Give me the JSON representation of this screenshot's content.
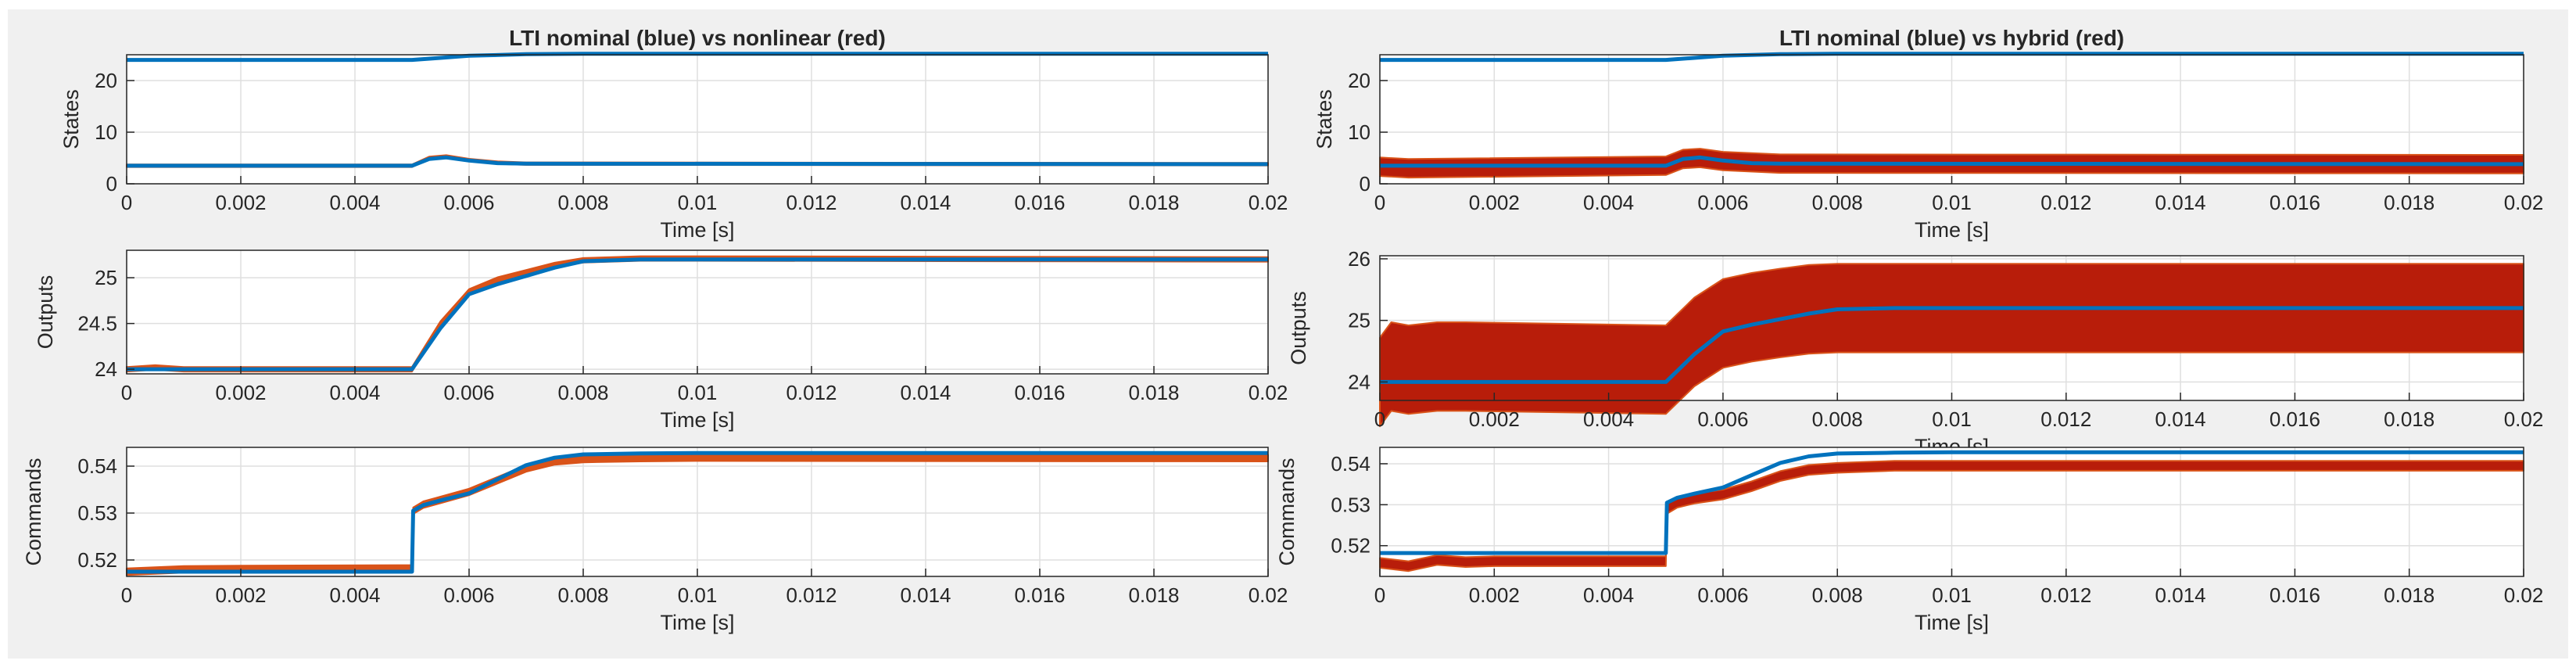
{
  "figure": {
    "background": "#f0f0f0",
    "axes_background": "#ffffff",
    "grid_color": "#dfdfdf",
    "blue": "#0072bd",
    "red": "#d95319",
    "dark_red": "#b81d0a"
  },
  "chart_data": [
    {
      "id": "left-states",
      "type": "line",
      "title": "LTI nominal (blue) vs nonlinear (red)",
      "ylabel": "States",
      "xlabel": "Time [s]",
      "xlim": [
        0,
        0.02
      ],
      "ylim": [
        0,
        25
      ],
      "xticks": [
        "0",
        "0.002",
        "0.004",
        "0.006",
        "0.008",
        "0.01",
        "0.012",
        "0.014",
        "0.016",
        "0.018",
        "0.02"
      ],
      "yticks": [
        "0",
        "10",
        "20"
      ],
      "ytick_values": [
        0,
        10,
        20
      ],
      "grid": true,
      "series": [
        {
          "color": "blue",
          "x": [
            0,
            0.005,
            0.0055,
            0.006,
            0.007,
            0.008,
            0.02
          ],
          "y": [
            24,
            24,
            24.4,
            24.8,
            25.1,
            25.2,
            25.2
          ]
        },
        {
          "color": "red",
          "x": [
            0,
            0.005,
            0.0053,
            0.0056,
            0.006,
            0.0065,
            0.007,
            0.02
          ],
          "y": [
            3.5,
            3.5,
            5.0,
            5.3,
            4.6,
            4.1,
            3.9,
            3.8
          ],
          "band": 0.25
        },
        {
          "color": "blue",
          "x": [
            0,
            0.005,
            0.0053,
            0.0056,
            0.006,
            0.0065,
            0.007,
            0.02
          ],
          "y": [
            3.5,
            3.5,
            4.8,
            5.1,
            4.5,
            4.0,
            3.9,
            3.8
          ]
        }
      ]
    },
    {
      "id": "right-states",
      "type": "line",
      "title": "LTI nominal (blue) vs hybrid (red)",
      "ylabel": "States",
      "xlabel": "Time [s]",
      "xlim": [
        0,
        0.02
      ],
      "ylim": [
        0,
        25
      ],
      "xticks": [
        "0",
        "0.002",
        "0.004",
        "0.006",
        "0.008",
        "0.01",
        "0.012",
        "0.014",
        "0.016",
        "0.018",
        "0.02"
      ],
      "yticks": [
        "0",
        "10",
        "20"
      ],
      "ytick_values": [
        0,
        10,
        20
      ],
      "grid": true,
      "series": [
        {
          "color": "blue",
          "x": [
            0,
            0.005,
            0.0055,
            0.006,
            0.007,
            0.008,
            0.02
          ],
          "y": [
            24,
            24,
            24.4,
            24.8,
            25.1,
            25.2,
            25.2
          ]
        },
        {
          "color": "dark_red",
          "x": [
            0,
            0.0005,
            0.005,
            0.0053,
            0.0056,
            0.006,
            0.007,
            0.02
          ],
          "y": [
            3.3,
            3.0,
            3.5,
            4.8,
            5.0,
            4.4,
            3.9,
            3.8
          ],
          "band": 1.8
        },
        {
          "color": "blue",
          "x": [
            0,
            0.005,
            0.0053,
            0.0056,
            0.006,
            0.0065,
            0.007,
            0.02
          ],
          "y": [
            3.5,
            3.5,
            4.8,
            5.1,
            4.5,
            4.0,
            3.9,
            3.8
          ]
        }
      ]
    },
    {
      "id": "left-outputs",
      "type": "line",
      "title": "",
      "ylabel": "Outputs",
      "xlabel": "Time [s]",
      "xlim": [
        0,
        0.02
      ],
      "ylim": [
        23.95,
        25.3
      ],
      "xticks": [
        "0",
        "0.002",
        "0.004",
        "0.006",
        "0.008",
        "0.01",
        "0.012",
        "0.014",
        "0.016",
        "0.018",
        "0.02"
      ],
      "yticks": [
        "24",
        "24.5",
        "25"
      ],
      "ytick_values": [
        24,
        24.5,
        25
      ],
      "grid": true,
      "series": [
        {
          "color": "red",
          "x": [
            0,
            0.0005,
            0.001,
            0.0015,
            0.005,
            0.0055,
            0.006,
            0.0065,
            0.007,
            0.0075,
            0.008,
            0.009,
            0.01,
            0.02
          ],
          "y": [
            24.0,
            24.02,
            24.0,
            24.0,
            24.0,
            24.5,
            24.85,
            24.98,
            25.06,
            25.14,
            25.19,
            25.21,
            25.21,
            25.2
          ],
          "band": 0.025
        },
        {
          "color": "blue",
          "x": [
            0,
            0.005,
            0.0055,
            0.006,
            0.0065,
            0.007,
            0.0075,
            0.008,
            0.009,
            0.01,
            0.02
          ],
          "y": [
            24.0,
            24.0,
            24.45,
            24.82,
            24.93,
            25.02,
            25.11,
            25.18,
            25.2,
            25.2,
            25.2
          ]
        }
      ]
    },
    {
      "id": "right-outputs",
      "type": "line",
      "title": "",
      "ylabel": "Outputs",
      "xlabel": "Time [s]",
      "xlim": [
        0,
        0.02
      ],
      "ylim": [
        23.7,
        26.05
      ],
      "xticks": [
        "0",
        "0.002",
        "0.004",
        "0.006",
        "0.008",
        "0.01",
        "0.012",
        "0.014",
        "0.016",
        "0.018",
        "0.02"
      ],
      "yticks": [
        "24",
        "25",
        "26"
      ],
      "ytick_values": [
        24,
        25,
        26
      ],
      "grid": true,
      "series": [
        {
          "color": "dark_red",
          "x": [
            0,
            0.0002,
            0.0005,
            0.001,
            0.0015,
            0.005,
            0.0055,
            0.006,
            0.0065,
            0.007,
            0.0075,
            0.008,
            0.009,
            0.01,
            0.02
          ],
          "y": [
            24.0,
            24.25,
            24.2,
            24.25,
            24.25,
            24.2,
            24.65,
            24.95,
            25.05,
            25.12,
            25.18,
            25.2,
            25.2,
            25.2,
            25.2
          ],
          "band": 0.72
        },
        {
          "color": "blue",
          "x": [
            0,
            0.005,
            0.0055,
            0.006,
            0.0065,
            0.007,
            0.0075,
            0.008,
            0.009,
            0.01,
            0.02
          ],
          "y": [
            24.0,
            24.0,
            24.45,
            24.82,
            24.93,
            25.02,
            25.11,
            25.18,
            25.2,
            25.2,
            25.2
          ]
        }
      ]
    },
    {
      "id": "left-commands",
      "type": "line",
      "title": "",
      "ylabel": "Commands",
      "xlabel": "Time [s]",
      "xlim": [
        0,
        0.02
      ],
      "ylim": [
        0.5165,
        0.544
      ],
      "xticks": [
        "0",
        "0.002",
        "0.004",
        "0.006",
        "0.008",
        "0.01",
        "0.012",
        "0.014",
        "0.016",
        "0.018",
        "0.02"
      ],
      "yticks": [
        "0.52",
        "0.53",
        "0.54"
      ],
      "ytick_values": [
        0.52,
        0.53,
        0.54
      ],
      "grid": true,
      "series": [
        {
          "color": "red",
          "x": [
            0,
            0.001,
            0.002,
            0.005,
            0.00502,
            0.0052,
            0.0055,
            0.006,
            0.0065,
            0.007,
            0.0075,
            0.008,
            0.009,
            0.01,
            0.02
          ],
          "y": [
            0.5175,
            0.518,
            0.5181,
            0.5182,
            0.5305,
            0.5318,
            0.5328,
            0.5345,
            0.537,
            0.5395,
            0.541,
            0.5415,
            0.5417,
            0.5418,
            0.5417
          ],
          "band": 0.0007
        },
        {
          "color": "blue",
          "x": [
            0,
            0.005,
            0.00502,
            0.0052,
            0.0055,
            0.006,
            0.0065,
            0.007,
            0.0075,
            0.008,
            0.009,
            0.01,
            0.02
          ],
          "y": [
            0.5175,
            0.5175,
            0.5305,
            0.5317,
            0.5327,
            0.5342,
            0.5372,
            0.5402,
            0.5418,
            0.5425,
            0.5427,
            0.5428,
            0.5428
          ]
        }
      ]
    },
    {
      "id": "right-commands",
      "type": "line",
      "title": "",
      "ylabel": "Commands",
      "xlabel": "Time [s]",
      "xlim": [
        0,
        0.02
      ],
      "ylim": [
        0.5125,
        0.544
      ],
      "xticks": [
        "0",
        "0.002",
        "0.004",
        "0.006",
        "0.008",
        "0.01",
        "0.012",
        "0.014",
        "0.016",
        "0.018",
        "0.02"
      ],
      "yticks": [
        "0.52",
        "0.53",
        "0.54"
      ],
      "ytick_values": [
        0.52,
        0.53,
        0.54
      ],
      "grid": true,
      "series": [
        {
          "color": "dark_red",
          "x": [
            0,
            0.0005,
            0.001,
            0.0015,
            0.002,
            0.005,
            0.00502,
            0.0052,
            0.0055,
            0.006,
            0.0065,
            0.007,
            0.0075,
            0.008,
            0.009,
            0.01,
            0.02
          ],
          "y": [
            0.5158,
            0.515,
            0.5165,
            0.516,
            0.5162,
            0.5162,
            0.529,
            0.5305,
            0.5315,
            0.5325,
            0.5345,
            0.537,
            0.5385,
            0.539,
            0.5395,
            0.5395,
            0.5395
          ],
          "band": 0.0012
        },
        {
          "color": "blue",
          "x": [
            0,
            0.005,
            0.00502,
            0.0052,
            0.0055,
            0.006,
            0.0065,
            0.007,
            0.0075,
            0.008,
            0.009,
            0.01,
            0.02
          ],
          "y": [
            0.5182,
            0.5182,
            0.5305,
            0.5317,
            0.5327,
            0.5342,
            0.5372,
            0.5402,
            0.5418,
            0.5425,
            0.5427,
            0.5428,
            0.5428
          ]
        }
      ]
    }
  ]
}
